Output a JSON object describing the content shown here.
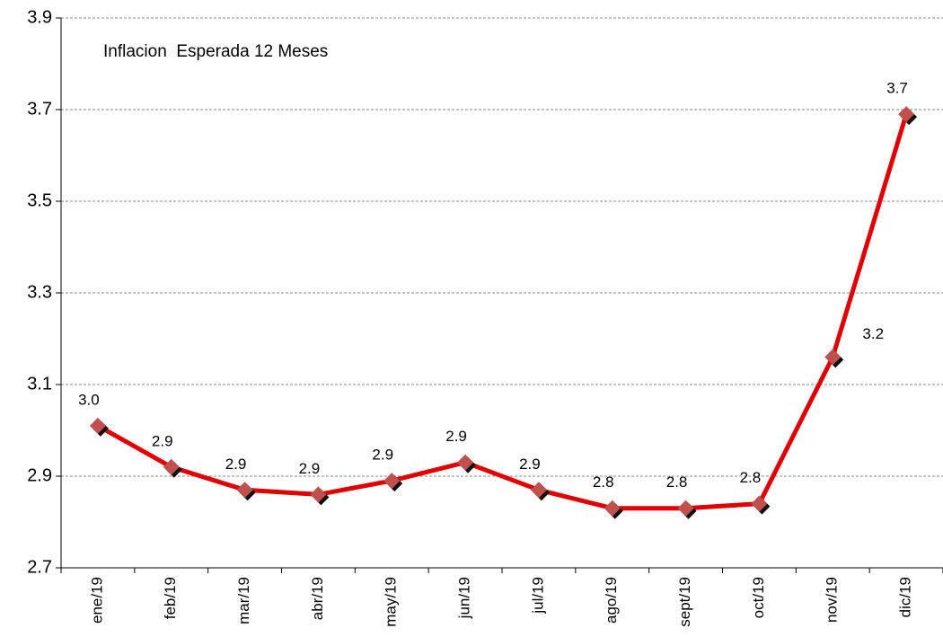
{
  "chart_data": {
    "type": "line",
    "annotation": "Inflacion  Esperada 12 Meses",
    "categories": [
      "ene/19",
      "feb/19",
      "mar/19",
      "abr/19",
      "may/19",
      "jun/19",
      "jul/19",
      "ago/19",
      "sept/19",
      "oct/19",
      "nov/19",
      "dic/19"
    ],
    "series": [
      {
        "color": "#e00000",
        "marker_color": "#c0504d",
        "values": [
          3.01,
          2.92,
          2.87,
          2.86,
          2.89,
          2.93,
          2.87,
          2.83,
          2.83,
          2.84,
          3.16,
          3.69
        ],
        "value_labels": [
          "3.0",
          "2.9",
          "2.9",
          "2.9",
          "2.9",
          "2.9",
          "2.9",
          "2.8",
          "2.8",
          "2.8",
          "3.2",
          "3.7"
        ]
      }
    ],
    "ylim": [
      2.7,
      3.9
    ],
    "yticks": [
      2.7,
      2.9,
      3.1,
      3.3,
      3.5,
      3.7,
      3.9
    ],
    "grid": true
  }
}
